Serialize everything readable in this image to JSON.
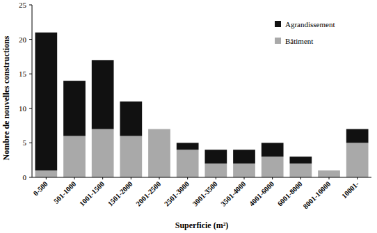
{
  "chart_data": {
    "type": "bar",
    "stacked": true,
    "x_label": "Superficie (m²)",
    "y_label": "Nombre de nouvelles constructions",
    "categories": [
      "0-500",
      "501-1000",
      "1001-1500",
      "1501-2000",
      "2001-2500",
      "2501-3000",
      "3001-3500",
      "3501-4000",
      "4001-6000",
      "6001-8000",
      "8001-10000",
      "10001-"
    ],
    "series": [
      {
        "name": "Bâtiment",
        "color": "#a9a9a9",
        "values": [
          1,
          6,
          7,
          6,
          7,
          4,
          2,
          2,
          3,
          2,
          1,
          5
        ]
      },
      {
        "name": "Agrandissement",
        "color": "#111111",
        "values": [
          20,
          8,
          10,
          5,
          0,
          1,
          2,
          2,
          2,
          1,
          0,
          2
        ]
      }
    ],
    "ylim": [
      0,
      25
    ],
    "yticks": [
      0,
      5,
      10,
      15,
      20,
      25
    ],
    "legend": "upper right",
    "grid": false
  }
}
